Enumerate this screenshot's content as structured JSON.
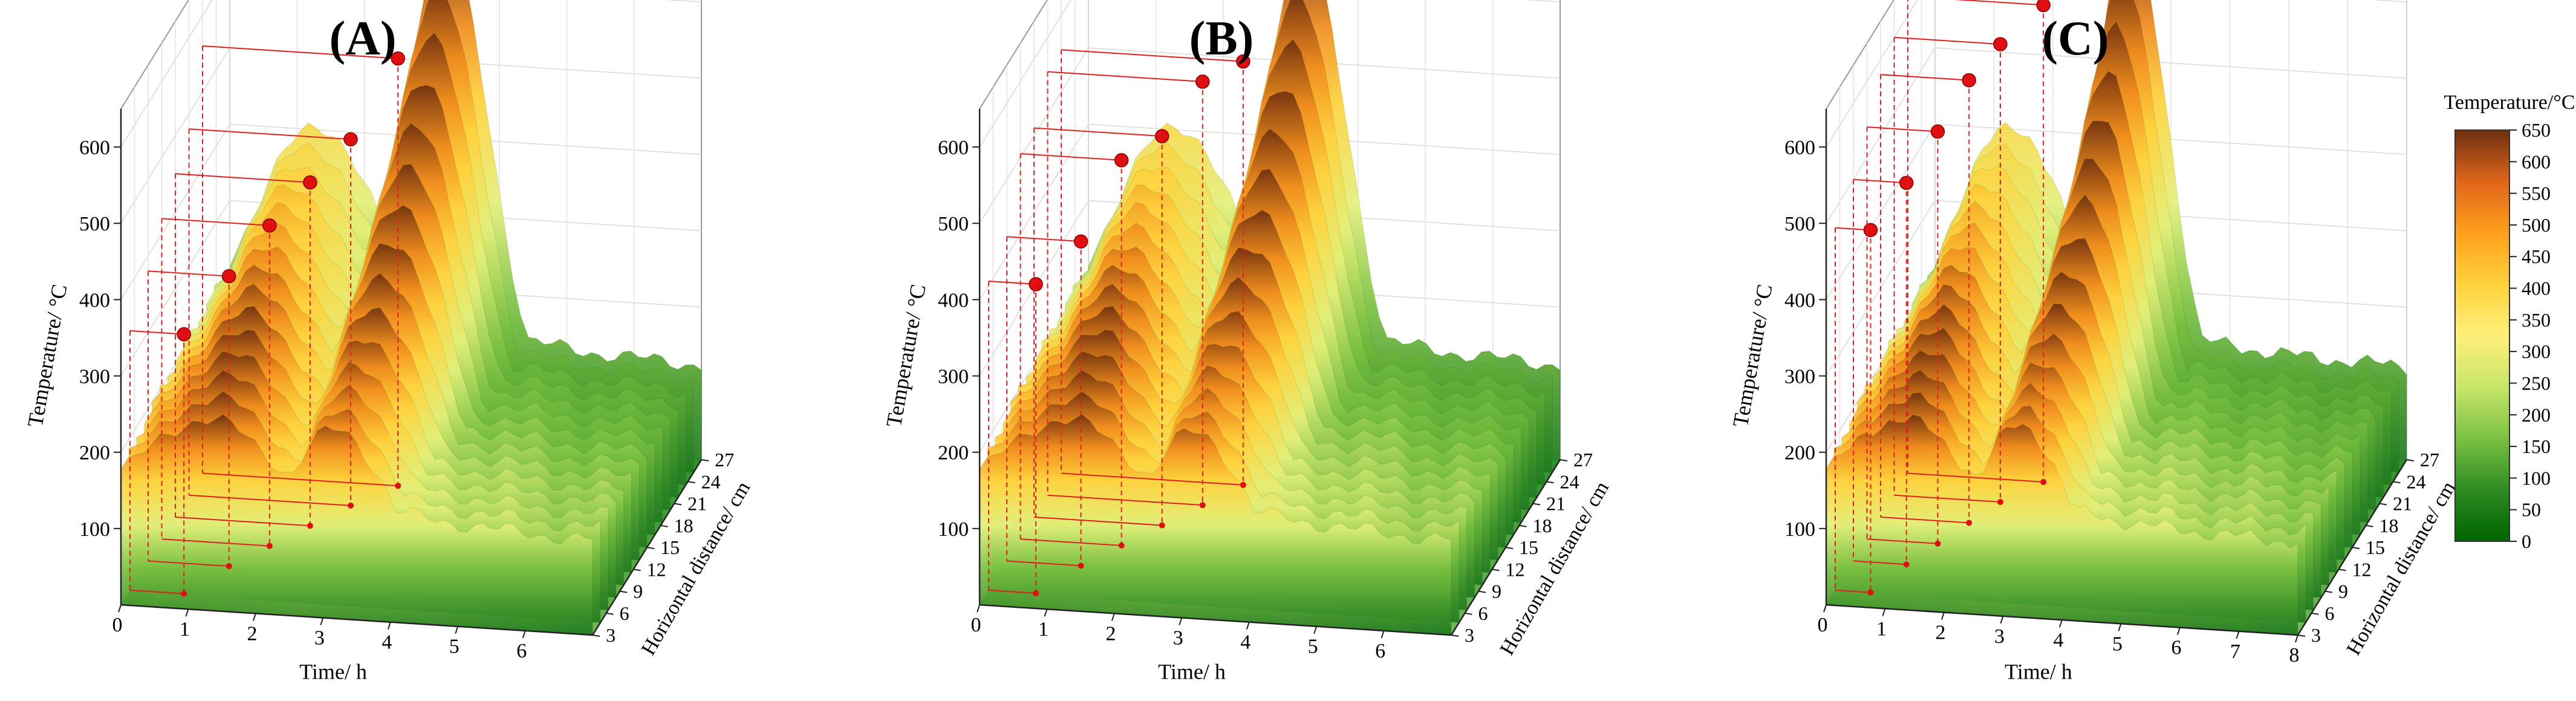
{
  "chart_data": [
    {
      "type": "surface3d",
      "panel_label": "(A)",
      "xlabel": "Time/ h",
      "ylabel": "Horizontal distance/ cm",
      "zlabel": "Temperature/ °C",
      "x_ticks": [
        "0",
        "1",
        "2",
        "3",
        "4",
        "5",
        "6"
      ],
      "y_ticks": [
        "3",
        "6",
        "9",
        "12",
        "15",
        "18",
        "21",
        "24",
        "27"
      ],
      "z_ticks": [
        "100",
        "200",
        "300",
        "400",
        "500",
        "600"
      ],
      "xlim": [
        0,
        7
      ],
      "ylim": [
        3,
        27
      ],
      "zlim": [
        0,
        650
      ],
      "peak": {
        "x": 3.2,
        "y": 27,
        "z": 630
      },
      "markers": [
        {
          "x": 0.8,
          "y": 5,
          "z": 340
        },
        {
          "x": 1.2,
          "y": 9,
          "z": 380
        },
        {
          "x": 1.6,
          "y": 12,
          "z": 420
        },
        {
          "x": 2.0,
          "y": 15,
          "z": 450
        },
        {
          "x": 2.4,
          "y": 18,
          "z": 480
        },
        {
          "x": 2.9,
          "y": 21,
          "z": 560
        }
      ]
    },
    {
      "type": "surface3d",
      "panel_label": "(B)",
      "xlabel": "Time/ h",
      "ylabel": "Horizontal distance/ cm",
      "zlabel": "Temperature/ °C",
      "x_ticks": [
        "0",
        "1",
        "2",
        "3",
        "4",
        "5",
        "6"
      ],
      "y_ticks": [
        "3",
        "6",
        "9",
        "12",
        "15",
        "18",
        "21",
        "24",
        "27"
      ],
      "z_ticks": [
        "100",
        "200",
        "300",
        "400",
        "500",
        "600"
      ],
      "xlim": [
        0,
        7
      ],
      "ylim": [
        3,
        27
      ],
      "zlim": [
        0,
        650
      ],
      "peak": {
        "x": 3.2,
        "y": 27,
        "z": 620
      },
      "markers": [
        {
          "x": 0.7,
          "y": 5,
          "z": 405
        },
        {
          "x": 1.1,
          "y": 9,
          "z": 425
        },
        {
          "x": 1.5,
          "y": 12,
          "z": 505
        },
        {
          "x": 1.9,
          "y": 15,
          "z": 510
        },
        {
          "x": 2.3,
          "y": 18,
          "z": 555
        },
        {
          "x": 2.7,
          "y": 21,
          "z": 555
        }
      ]
    },
    {
      "type": "surface3d",
      "panel_label": "(C)",
      "xlabel": "Time/ h",
      "ylabel": "Horizontal distance/ cm",
      "zlabel": "Temperature/ °C",
      "x_ticks": [
        "0",
        "1",
        "2",
        "3",
        "4",
        "5",
        "6",
        "7",
        "8"
      ],
      "y_ticks": [
        "3",
        "6",
        "9",
        "12",
        "15",
        "18",
        "21",
        "24",
        "27"
      ],
      "z_ticks": [
        "100",
        "200",
        "300",
        "400",
        "500",
        "600"
      ],
      "xlim": [
        0,
        8
      ],
      "ylim": [
        3,
        27
      ],
      "zlim": [
        0,
        650
      ],
      "peak": {
        "x": 3.3,
        "y": 27,
        "z": 640
      },
      "markers": [
        {
          "x": 0.6,
          "y": 5,
          "z": 475
        },
        {
          "x": 0.9,
          "y": 9,
          "z": 500
        },
        {
          "x": 1.2,
          "y": 12,
          "z": 540
        },
        {
          "x": 1.5,
          "y": 15,
          "z": 580
        },
        {
          "x": 1.8,
          "y": 18,
          "z": 600
        },
        {
          "x": 2.3,
          "y": 21,
          "z": 625
        }
      ]
    }
  ],
  "colorbar": {
    "title": "Temperature/°C",
    "ticks": [
      "0",
      "50",
      "100",
      "150",
      "200",
      "250",
      "300",
      "350",
      "400",
      "450",
      "500",
      "550",
      "600",
      "650"
    ],
    "min": 0,
    "max": 650,
    "stops": [
      "#006400",
      "#2e8b22",
      "#7ac142",
      "#c8e66a",
      "#fff07a",
      "#ffd23c",
      "#ff9f1c",
      "#e0651a",
      "#6e3010"
    ]
  }
}
